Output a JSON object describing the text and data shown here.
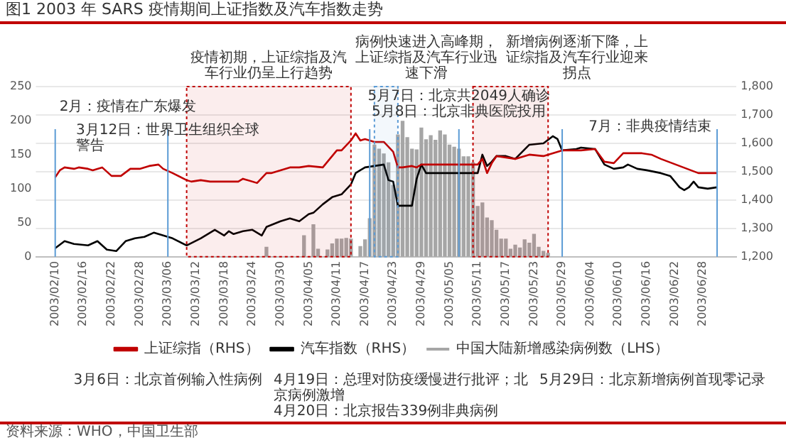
{
  "chart_data": {
    "type": "line",
    "title": "图1 2003 年 SARS 疫情期间上证指数及汽车指数走势",
    "xlim": [
      "2003-02-09",
      "2003-07-02"
    ],
    "xticks": [
      {
        "value": "2003-02-10",
        "label": "2003/02/10"
      },
      {
        "value": "2003-02-16",
        "label": "2003/02/16"
      },
      {
        "value": "2003-02-22",
        "label": "2003/02/22"
      },
      {
        "value": "2003-02-28",
        "label": "2003/02/28"
      },
      {
        "value": "2003-03-06",
        "label": "2003/03/06"
      },
      {
        "value": "2003-03-12",
        "label": "2003/03/12"
      },
      {
        "value": "2003-03-18",
        "label": "2003/03/18"
      },
      {
        "value": "2003-03-24",
        "label": "2003/03/24"
      },
      {
        "value": "2003-03-30",
        "label": "2003/03/30"
      },
      {
        "value": "2003-04-05",
        "label": "2003/04/05"
      },
      {
        "value": "2003-04-11",
        "label": "2003/04/11"
      },
      {
        "value": "2003-04-17",
        "label": "2003/04/17"
      },
      {
        "value": "2003-04-23",
        "label": "2003/04/23"
      },
      {
        "value": "2003-04-29",
        "label": "2003/04/29"
      },
      {
        "value": "2003-05-05",
        "label": "2003/05/05"
      },
      {
        "value": "2003-05-11",
        "label": "2003/05/11"
      },
      {
        "value": "2003-05-17",
        "label": "2003/05/17"
      },
      {
        "value": "2003-05-23",
        "label": "2003/05/23"
      },
      {
        "value": "2003-05-29",
        "label": "2003/05/29"
      },
      {
        "value": "2003-06-04",
        "label": "2003/06/04"
      },
      {
        "value": "2003-06-10",
        "label": "2003/06/10"
      },
      {
        "value": "2003-06-16",
        "label": "2003/06/16"
      },
      {
        "value": "2003-06-22",
        "label": "2003/06/22"
      },
      {
        "value": "2003-06-28",
        "label": "2003/06/28"
      }
    ],
    "ylim": [
      0,
      250
    ],
    "yticks": [
      0,
      50,
      100,
      150,
      200,
      250
    ],
    "y2lim": [
      1200,
      1800
    ],
    "y2ticks": [
      {
        "value": 1200,
        "label": "1,200"
      },
      {
        "value": 1300,
        "label": "1,300"
      },
      {
        "value": 1400,
        "label": "1,400"
      },
      {
        "value": 1500,
        "label": "1,500"
      },
      {
        "value": 1600,
        "label": "1,600"
      },
      {
        "value": 1700,
        "label": "1,700"
      },
      {
        "value": 1800,
        "label": "1,800"
      }
    ],
    "grid": "y",
    "legend": "bottom",
    "marker": "none",
    "line_style": "solid",
    "series": [
      {
        "name": "中国大陆新增感染病例数（LHS）",
        "type": "bar",
        "color": "#a6a6a6",
        "x": [
          "2003-03-27",
          "2003-04-04",
          "2003-04-06",
          "2003-04-07",
          "2003-04-09",
          "2003-04-10",
          "2003-04-11",
          "2003-04-12",
          "2003-04-13",
          "2003-04-14",
          "2003-04-16",
          "2003-04-17",
          "2003-04-18",
          "2003-04-19",
          "2003-04-20",
          "2003-04-21",
          "2003-04-22",
          "2003-04-23",
          "2003-04-24",
          "2003-04-25",
          "2003-04-26",
          "2003-04-27",
          "2003-04-28",
          "2003-04-29",
          "2003-04-30",
          "2003-05-01",
          "2003-05-02",
          "2003-05-03",
          "2003-05-04",
          "2003-05-05",
          "2003-05-06",
          "2003-05-07",
          "2003-05-08",
          "2003-05-09",
          "2003-05-10",
          "2003-05-11",
          "2003-05-12",
          "2003-05-13",
          "2003-05-14",
          "2003-05-15",
          "2003-05-16",
          "2003-05-17",
          "2003-05-18",
          "2003-05-19",
          "2003-05-20",
          "2003-05-21",
          "2003-05-22",
          "2003-05-23",
          "2003-05-24",
          "2003-05-25",
          "2003-05-26"
        ],
        "values": [
          14,
          31,
          47,
          11,
          10,
          19,
          26,
          26,
          27,
          26,
          15,
          25,
          56,
          164,
          158,
          151,
          138,
          105,
          179,
          199,
          175,
          158,
          157,
          189,
          172,
          178,
          171,
          185,
          179,
          164,
          161,
          158,
          147,
          147,
          138,
          74,
          79,
          57,
          53,
          39,
          26,
          26,
          11,
          17,
          13,
          25,
          20,
          33,
          14,
          8,
          5
        ]
      },
      {
        "name": "上证综指（RHS）",
        "axis": "y2",
        "color": "#c00000",
        "x": [
          "2003-02-10",
          "2003-02-11",
          "2003-02-12",
          "2003-02-14",
          "2003-02-15",
          "2003-02-17",
          "2003-02-18",
          "2003-02-20",
          "2003-02-22",
          "2003-02-24",
          "2003-02-26",
          "2003-02-28",
          "2003-03-02",
          "2003-03-04",
          "2003-03-05",
          "2003-03-07",
          "2003-03-10",
          "2003-03-11",
          "2003-03-13",
          "2003-03-15",
          "2003-03-19",
          "2003-03-21",
          "2003-03-22",
          "2003-03-25",
          "2003-03-27",
          "2003-03-28",
          "2003-03-30",
          "2003-04-01",
          "2003-04-03",
          "2003-04-05",
          "2003-04-08",
          "2003-04-09",
          "2003-04-11",
          "2003-04-12",
          "2003-04-14",
          "2003-04-15",
          "2003-04-16",
          "2003-04-17",
          "2003-04-19",
          "2003-04-21",
          "2003-04-23",
          "2003-04-24",
          "2003-04-25",
          "2003-04-27",
          "2003-04-28",
          "2003-04-29",
          "2003-05-11",
          "2003-05-12",
          "2003-05-13",
          "2003-05-14",
          "2003-05-15",
          "2003-05-17",
          "2003-05-19",
          "2003-05-22",
          "2003-05-25",
          "2003-05-27",
          "2003-05-29",
          "2003-06-02",
          "2003-06-05",
          "2003-06-07",
          "2003-06-09",
          "2003-06-11",
          "2003-06-13",
          "2003-06-15",
          "2003-06-17",
          "2003-06-19",
          "2003-06-23",
          "2003-06-27",
          "2003-06-29",
          "2003-07-01"
        ],
        "values": [
          1480,
          1505,
          1515,
          1510,
          1515,
          1510,
          1505,
          1515,
          1485,
          1485,
          1510,
          1510,
          1520,
          1525,
          1510,
          1495,
          1470,
          1465,
          1470,
          1465,
          1465,
          1465,
          1475,
          1460,
          1495,
          1495,
          1505,
          1515,
          1515,
          1520,
          1515,
          1535,
          1575,
          1575,
          1610,
          1635,
          1610,
          1615,
          1605,
          1605,
          1570,
          1515,
          1515,
          1520,
          1515,
          1525,
          1525,
          1545,
          1495,
          1530,
          1555,
          1550,
          1545,
          1560,
          1555,
          1565,
          1575,
          1575,
          1580,
          1535,
          1530,
          1565,
          1565,
          1565,
          1560,
          1545,
          1520,
          1495,
          1495,
          1495
        ]
      },
      {
        "name": "汽车指数（RHS）",
        "axis": "y2",
        "color": "#000000",
        "x": [
          "2003-02-10",
          "2003-02-12",
          "2003-02-14",
          "2003-02-17",
          "2003-02-19",
          "2003-02-21",
          "2003-02-23",
          "2003-02-25",
          "2003-02-27",
          "2003-03-01",
          "2003-03-03",
          "2003-03-05",
          "2003-03-07",
          "2003-03-10",
          "2003-03-13",
          "2003-03-15",
          "2003-03-16",
          "2003-03-18",
          "2003-03-19",
          "2003-03-20",
          "2003-03-22",
          "2003-03-24",
          "2003-03-26",
          "2003-03-27",
          "2003-03-30",
          "2003-04-01",
          "2003-04-03",
          "2003-04-05",
          "2003-04-06",
          "2003-04-08",
          "2003-04-10",
          "2003-04-12",
          "2003-04-14",
          "2003-04-15",
          "2003-04-17",
          "2003-04-19",
          "2003-04-21",
          "2003-04-22",
          "2003-04-23",
          "2003-04-24",
          "2003-04-27",
          "2003-04-28",
          "2003-04-29",
          "2003-04-30",
          "2003-05-11",
          "2003-05-12",
          "2003-05-13",
          "2003-05-14",
          "2003-05-15",
          "2003-05-17",
          "2003-05-19",
          "2003-05-22",
          "2003-05-25",
          "2003-05-27",
          "2003-05-28",
          "2003-05-29",
          "2003-06-01",
          "2003-06-02",
          "2003-06-05",
          "2003-06-07",
          "2003-06-09",
          "2003-06-11",
          "2003-06-12",
          "2003-06-14",
          "2003-06-16",
          "2003-06-19",
          "2003-06-21",
          "2003-06-23",
          "2003-06-24",
          "2003-06-25",
          "2003-06-26",
          "2003-06-27",
          "2003-06-29",
          "2003-07-01"
        ],
        "values": [
          1230,
          1255,
          1245,
          1240,
          1255,
          1225,
          1220,
          1255,
          1265,
          1270,
          1285,
          1275,
          1265,
          1240,
          1265,
          1285,
          1295,
          1275,
          1290,
          1280,
          1290,
          1295,
          1275,
          1305,
          1325,
          1335,
          1325,
          1350,
          1355,
          1385,
          1410,
          1420,
          1455,
          1495,
          1515,
          1520,
          1525,
          1470,
          1465,
          1380,
          1380,
          1475,
          1525,
          1495,
          1495,
          1560,
          1520,
          1535,
          1555,
          1555,
          1545,
          1595,
          1600,
          1625,
          1615,
          1575,
          1580,
          1585,
          1580,
          1525,
          1510,
          1515,
          1525,
          1510,
          1505,
          1495,
          1485,
          1445,
          1435,
          1445,
          1465,
          1445,
          1440,
          1445
        ]
      }
    ],
    "bands": [
      {
        "axis": "x",
        "from": "2003-03-10",
        "to": "2003-04-14",
        "label": "疫情初期，上证综指及汽车行业仍呈上行趋势",
        "color": "#c00000"
      },
      {
        "axis": "x",
        "from": "2003-04-19",
        "to": "2003-04-24",
        "label": "病例快速进入高峰期，上证综指及汽车行业迅速下滑",
        "color": "#5b9bd5"
      },
      {
        "axis": "x",
        "from": "2003-05-10",
        "to": "2003-05-26",
        "label": "新增病例逐渐下降，上证综指及汽车行业迎来拐点",
        "color": "#c00000"
      }
    ],
    "ref_lines": [
      {
        "axis": "x",
        "value": "2003-02-10",
        "color": "#5b9bd5"
      },
      {
        "axis": "x",
        "value": "2003-03-06",
        "color": "#5b9bd5"
      },
      {
        "axis": "x",
        "value": "2003-04-18",
        "color": "#5b9bd5"
      },
      {
        "axis": "x",
        "value": "2003-05-07",
        "color": "#5b9bd5"
      },
      {
        "axis": "x",
        "value": "2003-05-29",
        "color": "#5b9bd5"
      },
      {
        "axis": "x",
        "value": "2003-07-01",
        "color": "#5b9bd5"
      }
    ],
    "annotations": [
      "2月：疫情在广东爆发",
      "3月12日：世界卫生组织全球警告",
      "5月7日：北京共2049人确诊",
      "5月8日：北京非典医院投用",
      "7月：非典疫情结束",
      "3月6日：北京首例输入性病例",
      "4月19日：总理对防疫缓慢进行批评；北京病例激增",
      "4月20日：北京报告339例非典病例",
      "5月29日：北京新增病例首现零记录",
      "资料来源：WHO，中国卫生部"
    ]
  }
}
